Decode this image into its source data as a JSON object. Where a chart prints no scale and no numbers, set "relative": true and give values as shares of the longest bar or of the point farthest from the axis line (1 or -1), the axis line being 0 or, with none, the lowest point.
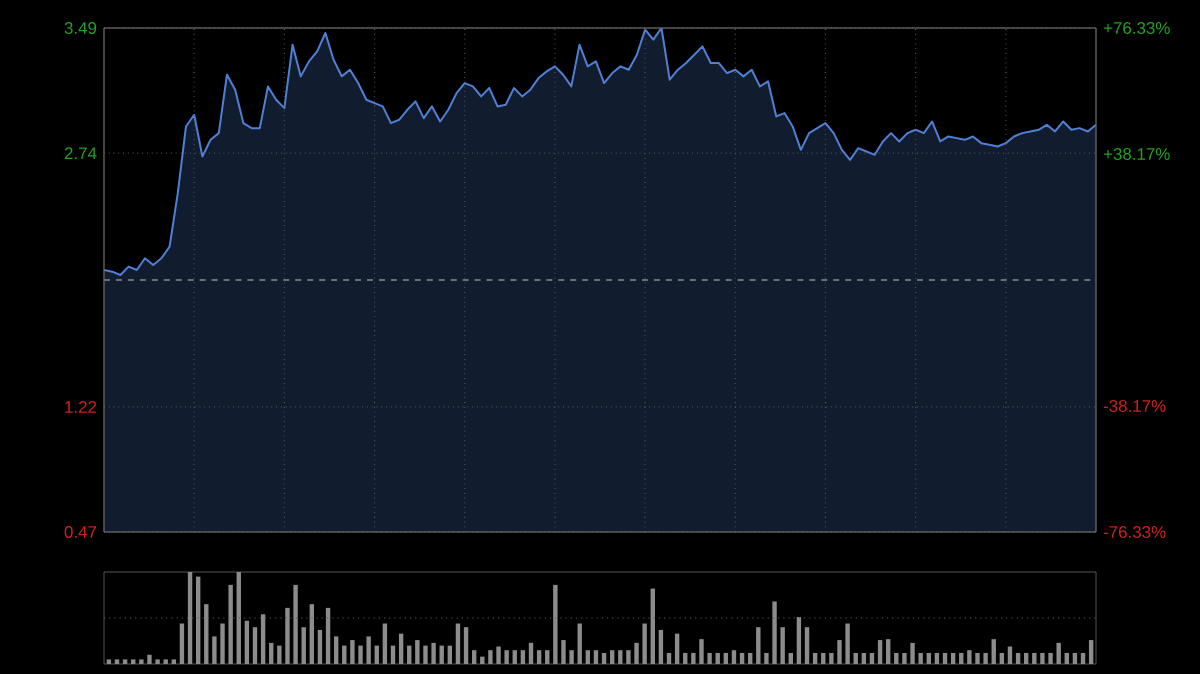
{
  "chart_data": [
    {
      "type": "area",
      "categories": [
        null,
        null,
        null,
        null,
        null,
        null,
        null,
        null,
        null,
        null,
        null,
        null,
        null,
        null,
        null,
        null,
        null,
        null,
        null,
        null,
        null,
        null,
        null,
        null,
        null,
        null,
        null,
        null,
        null,
        null,
        null,
        null,
        null,
        null,
        null,
        null,
        null,
        null,
        null,
        null,
        null,
        null,
        null,
        null,
        null,
        null,
        null,
        null,
        null,
        null,
        null,
        null,
        null,
        null,
        null,
        null,
        null,
        null,
        null,
        null,
        null,
        null,
        null,
        null,
        null,
        null,
        null,
        null,
        null,
        null,
        null,
        null,
        null,
        null,
        null,
        null,
        null,
        null,
        null,
        null,
        null,
        null,
        null,
        null,
        null,
        null,
        null,
        null,
        null,
        null,
        null,
        null,
        null,
        null,
        null,
        null,
        null,
        null,
        null,
        null,
        null,
        null,
        null,
        null,
        null,
        null,
        null,
        null,
        null,
        null,
        null,
        null,
        null,
        null,
        null,
        null,
        null,
        null,
        null,
        null,
        null,
        null
      ],
      "ylim": [
        0.47,
        3.49
      ],
      "yticks": [
        0.47,
        1.22,
        2.74,
        3.49
      ],
      "y2lim": [
        -76.33,
        76.33
      ],
      "y2ticks": [
        {
          "value": -76.33,
          "label": "-76.33%"
        },
        {
          "value": -38.17,
          "label": "-38.17%"
        },
        {
          "value": 38.17,
          "label": "+38.17%"
        },
        {
          "value": 76.33,
          "label": "+76.33%"
        }
      ],
      "grid": true,
      "ref_lines": [
        {
          "axis": "y",
          "value": 1.98,
          "line_style": "dashed",
          "color": "#8a8a8a"
        }
      ],
      "series": [
        {
          "color": "#4f80d6",
          "values": [
            2.04,
            2.03,
            2.01,
            2.06,
            2.04,
            2.11,
            2.07,
            2.11,
            2.18,
            2.5,
            2.9,
            2.97,
            2.72,
            2.82,
            2.86,
            3.21,
            3.12,
            2.92,
            2.89,
            2.89,
            3.14,
            3.06,
            3.01,
            3.39,
            3.2,
            3.29,
            3.35,
            3.46,
            3.3,
            3.2,
            3.24,
            3.16,
            3.06,
            3.04,
            3.02,
            2.92,
            2.94,
            3.0,
            3.05,
            2.95,
            3.02,
            2.93,
            3.0,
            3.1,
            3.16,
            3.14,
            3.08,
            3.13,
            3.02,
            3.03,
            3.13,
            3.08,
            3.12,
            3.19,
            3.23,
            3.26,
            3.21,
            3.14,
            3.39,
            3.26,
            3.29,
            3.16,
            3.22,
            3.26,
            3.24,
            3.33,
            3.48,
            3.42,
            3.49,
            3.18,
            3.24,
            3.28,
            3.33,
            3.38,
            3.28,
            3.28,
            3.22,
            3.24,
            3.2,
            3.24,
            3.14,
            3.17,
            2.96,
            2.98,
            2.9,
            2.76,
            2.86,
            2.89,
            2.92,
            2.86,
            2.76,
            2.7,
            2.77,
            2.75,
            2.73,
            2.81,
            2.86,
            2.81,
            2.86,
            2.88,
            2.86,
            2.93,
            2.81,
            2.84,
            2.83,
            2.82,
            2.84,
            2.8,
            2.79,
            2.78,
            2.8,
            2.84,
            2.86,
            2.87,
            2.88,
            2.91,
            2.87,
            2.93,
            2.88,
            2.89,
            2.87,
            2.91
          ]
        }
      ]
    },
    {
      "type": "bar",
      "relative": true,
      "ref_lines": [
        {
          "axis": "y",
          "value": 0.5,
          "line_style": "dotted",
          "color": "#5a5a5a"
        }
      ],
      "categories": [
        null,
        null,
        null,
        null,
        null,
        null,
        null,
        null,
        null,
        null,
        null,
        null,
        null,
        null,
        null,
        null,
        null,
        null,
        null,
        null,
        null,
        null,
        null,
        null,
        null,
        null,
        null,
        null,
        null,
        null,
        null,
        null,
        null,
        null,
        null,
        null,
        null,
        null,
        null,
        null,
        null,
        null,
        null,
        null,
        null,
        null,
        null,
        null,
        null,
        null,
        null,
        null,
        null,
        null,
        null,
        null,
        null,
        null,
        null,
        null,
        null,
        null,
        null,
        null,
        null,
        null,
        null,
        null,
        null,
        null,
        null,
        null,
        null,
        null,
        null,
        null,
        null,
        null,
        null,
        null,
        null,
        null,
        null,
        null,
        null,
        null,
        null,
        null,
        null,
        null,
        null,
        null,
        null,
        null,
        null,
        null,
        null,
        null,
        null,
        null,
        null,
        null,
        null,
        null,
        null,
        null,
        null,
        null,
        null,
        null,
        null,
        null,
        null,
        null,
        null,
        null,
        null,
        null,
        null,
        null,
        null,
        null
      ],
      "series": [
        {
          "color": "#8c8c8c",
          "values": [
            0.05,
            0.05,
            0.05,
            0.05,
            0.05,
            0.1,
            0.05,
            0.05,
            0.05,
            0.44,
            1.0,
            0.95,
            0.65,
            0.3,
            0.44,
            0.86,
            1.0,
            0.47,
            0.4,
            0.54,
            0.23,
            0.2,
            0.61,
            0.86,
            0.4,
            0.65,
            0.37,
            0.61,
            0.3,
            0.2,
            0.26,
            0.2,
            0.3,
            0.2,
            0.44,
            0.2,
            0.33,
            0.2,
            0.26,
            0.2,
            0.23,
            0.2,
            0.2,
            0.44,
            0.4,
            0.15,
            0.08,
            0.15,
            0.19,
            0.15,
            0.15,
            0.15,
            0.23,
            0.15,
            0.15,
            0.86,
            0.26,
            0.15,
            0.44,
            0.15,
            0.15,
            0.12,
            0.15,
            0.15,
            0.15,
            0.23,
            0.44,
            0.82,
            0.37,
            0.12,
            0.33,
            0.12,
            0.12,
            0.27,
            0.12,
            0.12,
            0.12,
            0.15,
            0.12,
            0.12,
            0.4,
            0.12,
            0.68,
            0.4,
            0.12,
            0.51,
            0.4,
            0.12,
            0.12,
            0.12,
            0.26,
            0.44,
            0.12,
            0.12,
            0.12,
            0.26,
            0.27,
            0.12,
            0.12,
            0.23,
            0.12,
            0.12,
            0.12,
            0.12,
            0.12,
            0.12,
            0.15,
            0.12,
            0.12,
            0.27,
            0.12,
            0.19,
            0.12,
            0.12,
            0.12,
            0.12,
            0.12,
            0.23,
            0.12,
            0.12,
            0.12,
            0.26
          ]
        }
      ]
    }
  ]
}
